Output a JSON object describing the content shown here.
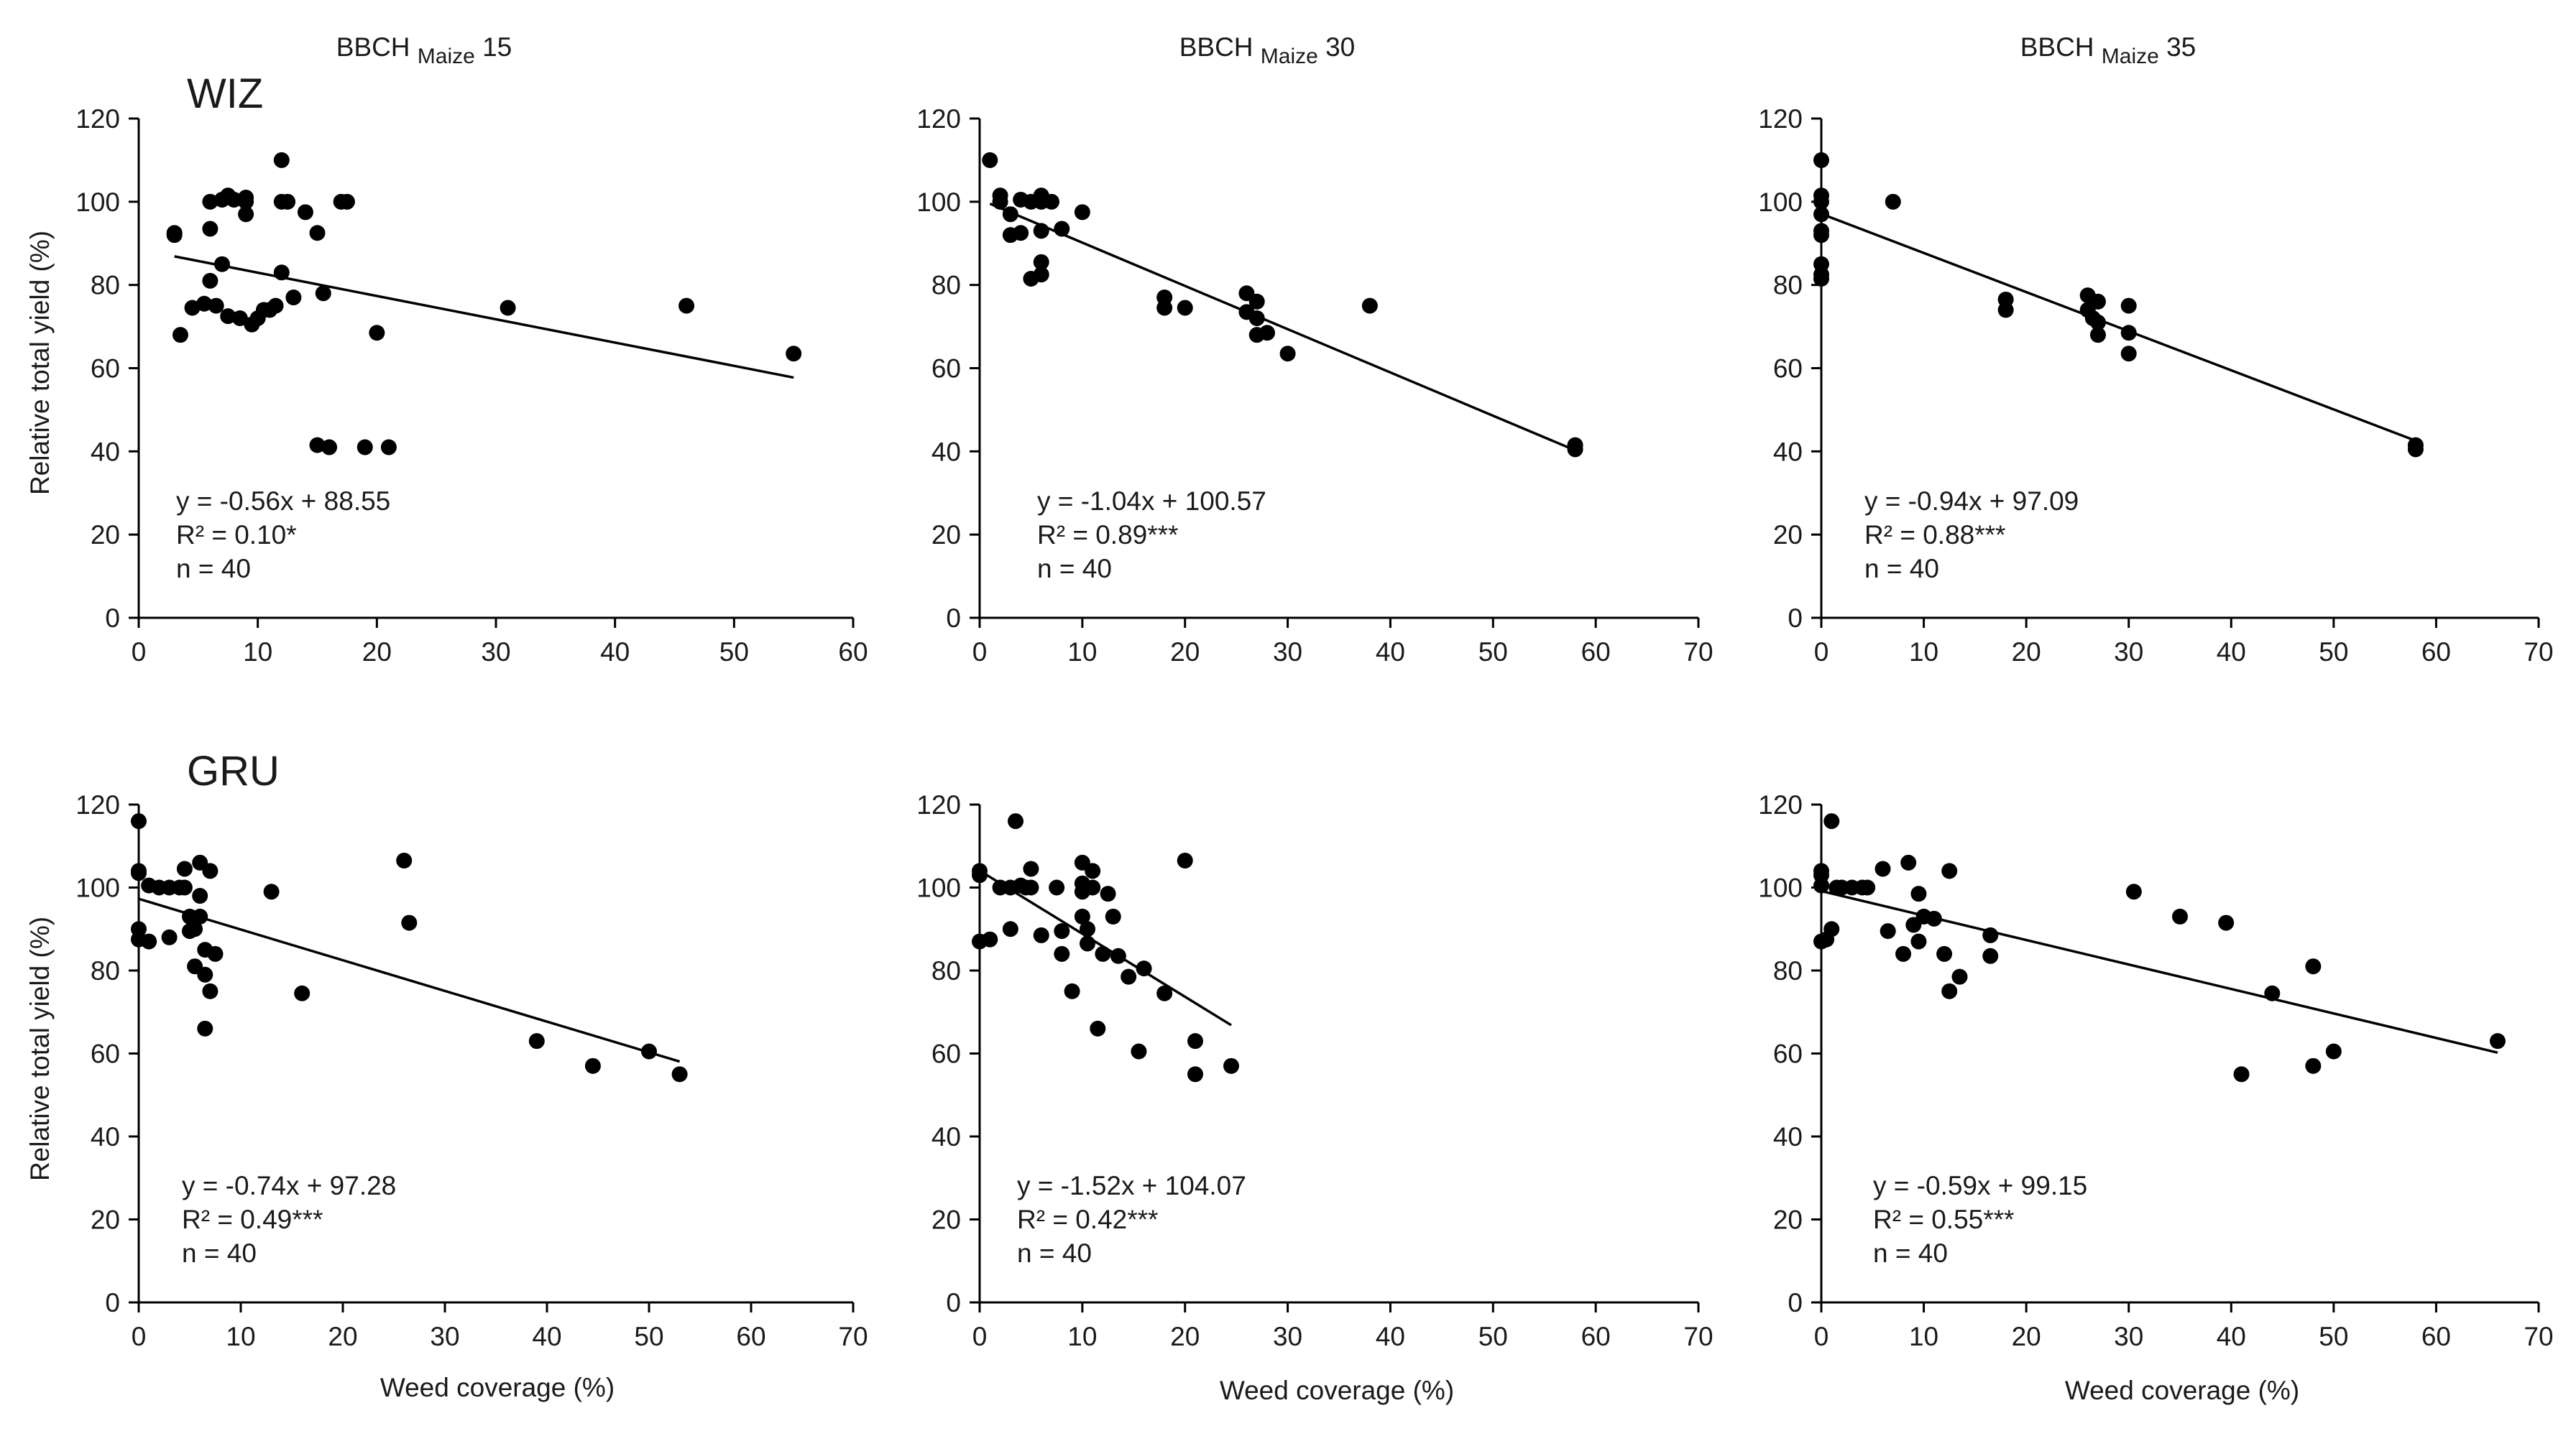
{
  "figure": {
    "x_axis_label": "Weed coverage (%)",
    "y_axis_label": "Relative total yield (%)"
  },
  "chart_data": [
    {
      "type": "scatter",
      "row_label": "WIZ",
      "title_main": "BBCH",
      "title_sub": "Maize",
      "title_stage": "15",
      "xlim": [
        0,
        60
      ],
      "xticks": [
        0,
        10,
        20,
        30,
        40,
        50,
        60
      ],
      "ylim": [
        0,
        120
      ],
      "yticks": [
        0,
        20,
        40,
        60,
        80,
        100,
        120
      ],
      "equation": "y = -0.56x + 88.55",
      "r2": "R² = 0.10*",
      "n": "n = 40",
      "trendline": {
        "slope": -0.56,
        "intercept": 88.55,
        "x_range": [
          3,
          55
        ]
      },
      "points": [
        [
          3,
          92
        ],
        [
          3,
          92.5
        ],
        [
          3.5,
          68
        ],
        [
          4.5,
          74.5
        ],
        [
          5.5,
          75.5
        ],
        [
          6,
          81
        ],
        [
          6,
          93.5
        ],
        [
          6,
          100
        ],
        [
          6.5,
          75
        ],
        [
          7,
          100.5
        ],
        [
          7,
          85
        ],
        [
          7.5,
          101.5
        ],
        [
          7.5,
          72.5
        ],
        [
          8,
          100.5
        ],
        [
          8.5,
          72
        ],
        [
          9,
          100
        ],
        [
          9,
          97
        ],
        [
          9,
          101
        ],
        [
          9.5,
          70.5
        ],
        [
          10,
          72
        ],
        [
          10.5,
          74
        ],
        [
          11,
          74
        ],
        [
          11.5,
          75
        ],
        [
          12,
          110
        ],
        [
          12,
          100
        ],
        [
          12,
          83
        ],
        [
          12.5,
          100
        ],
        [
          13,
          77
        ],
        [
          14,
          97.5
        ],
        [
          15,
          92.5
        ],
        [
          15,
          41.5
        ],
        [
          15.5,
          78
        ],
        [
          16,
          41
        ],
        [
          17,
          100
        ],
        [
          17.5,
          100
        ],
        [
          19,
          41
        ],
        [
          20,
          68.5
        ],
        [
          21,
          41
        ],
        [
          31,
          74.5
        ],
        [
          46,
          75
        ],
        [
          55,
          63.5
        ]
      ]
    },
    {
      "type": "scatter",
      "row_label": "",
      "title_main": "BBCH",
      "title_sub": "Maize",
      "title_stage": "30",
      "xlim": [
        0,
        70
      ],
      "xticks": [
        0,
        10,
        20,
        30,
        40,
        50,
        60,
        70
      ],
      "ylim": [
        0,
        120
      ],
      "yticks": [
        0,
        20,
        40,
        60,
        80,
        100,
        120
      ],
      "equation": "y = -1.04x + 100.57",
      "r2": "R² = 0.89***",
      "n": "n = 40",
      "trendline": {
        "slope": -1.04,
        "intercept": 100.57,
        "x_range": [
          1,
          58
        ]
      },
      "points": [
        [
          1,
          110
        ],
        [
          2,
          101.5
        ],
        [
          2,
          100
        ],
        [
          3,
          97
        ],
        [
          3,
          92
        ],
        [
          4,
          100.5
        ],
        [
          4,
          92.5
        ],
        [
          5,
          100
        ],
        [
          5,
          81.5
        ],
        [
          6,
          101.5
        ],
        [
          6,
          100
        ],
        [
          6,
          85.5
        ],
        [
          6,
          82.5
        ],
        [
          6,
          93
        ],
        [
          7,
          100
        ],
        [
          8,
          93.5
        ],
        [
          10,
          97.5
        ],
        [
          18,
          77
        ],
        [
          18,
          74.5
        ],
        [
          20,
          74.5
        ],
        [
          26,
          78
        ],
        [
          26,
          73.5
        ],
        [
          27,
          76
        ],
        [
          27,
          72
        ],
        [
          27,
          68
        ],
        [
          28,
          68.5
        ],
        [
          30,
          63.5
        ],
        [
          38,
          75
        ],
        [
          58,
          41.5
        ],
        [
          58,
          40.5
        ]
      ]
    },
    {
      "type": "scatter",
      "row_label": "",
      "title_main": "BBCH",
      "title_sub": "Maize",
      "title_stage": "35",
      "xlim": [
        0,
        70
      ],
      "xticks": [
        0,
        10,
        20,
        30,
        40,
        50,
        60,
        70
      ],
      "ylim": [
        0,
        120
      ],
      "yticks": [
        0,
        20,
        40,
        60,
        80,
        100,
        120
      ],
      "equation": "y = -0.94x + 97.09",
      "r2": "R² = 0.88***",
      "n": "n = 40",
      "trendline": {
        "slope": -0.94,
        "intercept": 97.09,
        "x_range": [
          0,
          58
        ]
      },
      "points": [
        [
          0,
          110
        ],
        [
          0,
          101.5
        ],
        [
          0,
          100
        ],
        [
          0,
          97
        ],
        [
          0,
          93
        ],
        [
          0,
          92
        ],
        [
          0,
          85
        ],
        [
          0,
          82.5
        ],
        [
          0,
          81.5
        ],
        [
          7,
          100
        ],
        [
          18,
          76.5
        ],
        [
          18,
          74
        ],
        [
          26,
          77.5
        ],
        [
          26,
          74
        ],
        [
          26.5,
          72
        ],
        [
          27,
          76
        ],
        [
          27,
          71
        ],
        [
          27,
          68
        ],
        [
          30,
          75
        ],
        [
          30,
          68.5
        ],
        [
          30,
          63.5
        ],
        [
          58,
          41.5
        ],
        [
          58,
          40.5
        ]
      ]
    },
    {
      "type": "scatter",
      "row_label": "GRU",
      "title_main": "",
      "title_sub": "",
      "title_stage": "",
      "xlim": [
        0,
        70
      ],
      "xticks": [
        0,
        10,
        20,
        30,
        40,
        50,
        60,
        70
      ],
      "ylim": [
        0,
        120
      ],
      "yticks": [
        0,
        20,
        40,
        60,
        80,
        100,
        120
      ],
      "equation": "y = -0.74x + 97.28",
      "r2": "R² = 0.49***",
      "n": "n = 40",
      "trendline": {
        "slope": -0.74,
        "intercept": 97.28,
        "x_range": [
          0,
          53
        ]
      },
      "points": [
        [
          0,
          116
        ],
        [
          0,
          104
        ],
        [
          0,
          103.5
        ],
        [
          0,
          90
        ],
        [
          0,
          87.5
        ],
        [
          1,
          100.5
        ],
        [
          1,
          87
        ],
        [
          2,
          100
        ],
        [
          3,
          100
        ],
        [
          3,
          88
        ],
        [
          4,
          100
        ],
        [
          4.5,
          100
        ],
        [
          4.5,
          104.5
        ],
        [
          5,
          93
        ],
        [
          5,
          89.5
        ],
        [
          5.5,
          81
        ],
        [
          5.5,
          90
        ],
        [
          6,
          106
        ],
        [
          6,
          98
        ],
        [
          6,
          93
        ],
        [
          6.5,
          66
        ],
        [
          6.5,
          79
        ],
        [
          6.5,
          85
        ],
        [
          7,
          104
        ],
        [
          7,
          75
        ],
        [
          7.5,
          84
        ],
        [
          13,
          99
        ],
        [
          16,
          74.5
        ],
        [
          26,
          106.5
        ],
        [
          26.5,
          91.5
        ],
        [
          39,
          63
        ],
        [
          44.5,
          57
        ],
        [
          50,
          60.5
        ],
        [
          53,
          55
        ]
      ]
    },
    {
      "type": "scatter",
      "row_label": "",
      "title_main": "",
      "title_sub": "",
      "title_stage": "",
      "xlim": [
        0,
        70
      ],
      "xticks": [
        0,
        10,
        20,
        30,
        40,
        50,
        60,
        70
      ],
      "ylim": [
        0,
        120
      ],
      "yticks": [
        0,
        20,
        40,
        60,
        80,
        100,
        120
      ],
      "equation": "y = -1.52x + 104.07",
      "r2": "R² = 0.42***",
      "n": "n = 40",
      "trendline": {
        "slope": -1.52,
        "intercept": 104.07,
        "x_range": [
          0,
          24.5
        ]
      },
      "points": [
        [
          0,
          104
        ],
        [
          0,
          103
        ],
        [
          0,
          87
        ],
        [
          1,
          87.5
        ],
        [
          2,
          100
        ],
        [
          3,
          100
        ],
        [
          3,
          90
        ],
        [
          3.5,
          116
        ],
        [
          4,
          100.5
        ],
        [
          4.5,
          100
        ],
        [
          5,
          100
        ],
        [
          5,
          104.5
        ],
        [
          6,
          88.5
        ],
        [
          7.5,
          100
        ],
        [
          8,
          89.5
        ],
        [
          8,
          84
        ],
        [
          9,
          75
        ],
        [
          10,
          106
        ],
        [
          10,
          101
        ],
        [
          10,
          99
        ],
        [
          10,
          93
        ],
        [
          10.5,
          90
        ],
        [
          10.5,
          86.5
        ],
        [
          11,
          104
        ],
        [
          11,
          100
        ],
        [
          11.5,
          66
        ],
        [
          12,
          84
        ],
        [
          12.5,
          98.5
        ],
        [
          13,
          93
        ],
        [
          13.5,
          83.5
        ],
        [
          14.5,
          78.5
        ],
        [
          15.5,
          60.5
        ],
        [
          16,
          80.5
        ],
        [
          18,
          74.5
        ],
        [
          20,
          106.5
        ],
        [
          21,
          63
        ],
        [
          21,
          55
        ],
        [
          24.5,
          57
        ]
      ]
    },
    {
      "type": "scatter",
      "row_label": "",
      "title_main": "",
      "title_sub": "",
      "title_stage": "",
      "xlim": [
        0,
        70
      ],
      "xticks": [
        0,
        10,
        20,
        30,
        40,
        50,
        60,
        70
      ],
      "ylim": [
        0,
        120
      ],
      "yticks": [
        0,
        20,
        40,
        60,
        80,
        100,
        120
      ],
      "equation": "y = -0.59x + 99.15",
      "r2": "R² = 0.55***",
      "n": "n = 40",
      "trendline": {
        "slope": -0.59,
        "intercept": 99.15,
        "x_range": [
          0,
          66
        ]
      },
      "points": [
        [
          0,
          104
        ],
        [
          0,
          103
        ],
        [
          0,
          100.5
        ],
        [
          0,
          87
        ],
        [
          0.5,
          87.5
        ],
        [
          1,
          116
        ],
        [
          1,
          90
        ],
        [
          1.5,
          100
        ],
        [
          2,
          100
        ],
        [
          3,
          100
        ],
        [
          4,
          100
        ],
        [
          4.5,
          100
        ],
        [
          6,
          104.5
        ],
        [
          6.5,
          89.5
        ],
        [
          8,
          84
        ],
        [
          8.5,
          106
        ],
        [
          9,
          91
        ],
        [
          9.5,
          98.5
        ],
        [
          9.5,
          87
        ],
        [
          10,
          93
        ],
        [
          11,
          92.5
        ],
        [
          12,
          84
        ],
        [
          12.5,
          75
        ],
        [
          12.5,
          104
        ],
        [
          13.5,
          78.5
        ],
        [
          16.5,
          88.5
        ],
        [
          16.5,
          83.5
        ],
        [
          30.5,
          99
        ],
        [
          35,
          93
        ],
        [
          39.5,
          91.5
        ],
        [
          41,
          55
        ],
        [
          44,
          74.5
        ],
        [
          48,
          81
        ],
        [
          48,
          57
        ],
        [
          50,
          60.5
        ],
        [
          66,
          63
        ]
      ]
    }
  ]
}
